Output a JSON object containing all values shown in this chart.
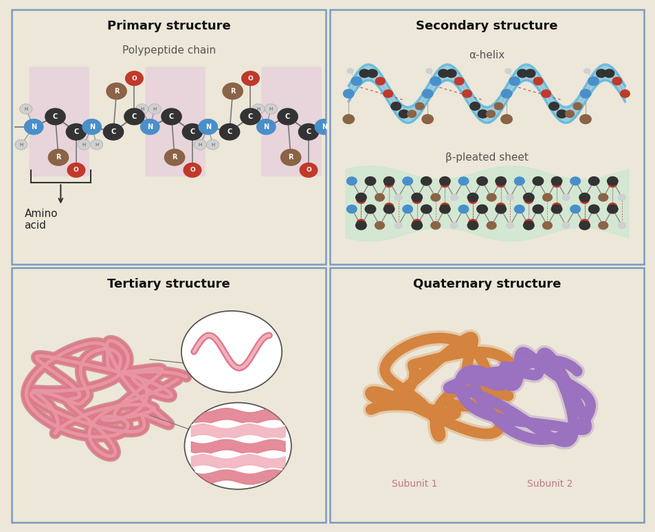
{
  "background_color": "#ece7d8",
  "panel_bg": "#ece7d8",
  "panel_border_color": "#7a9bbf",
  "titles": {
    "primary": "Primary structure",
    "secondary": "Secondary structure",
    "tertiary": "Tertiary structure",
    "quaternary": "Quaternary structure"
  },
  "colors": {
    "carbon": "#333333",
    "nitrogen": "#4a8fca",
    "oxygen": "#c0392b",
    "hydrogen": "#d0d0d0",
    "R_group": "#8b6347",
    "helix_ribbon": "#5bb8e0",
    "sheet_bg": "#b8e8cc",
    "pink_protein": "#e07888",
    "pink_protein_light": "#f0b0bc",
    "pink_protein_dark": "#c05868",
    "orange_subunit": "#d4843e",
    "purple_subunit": "#9b72bf",
    "amino_box": "#e8d0dc",
    "subunit_label": "#c07888"
  }
}
